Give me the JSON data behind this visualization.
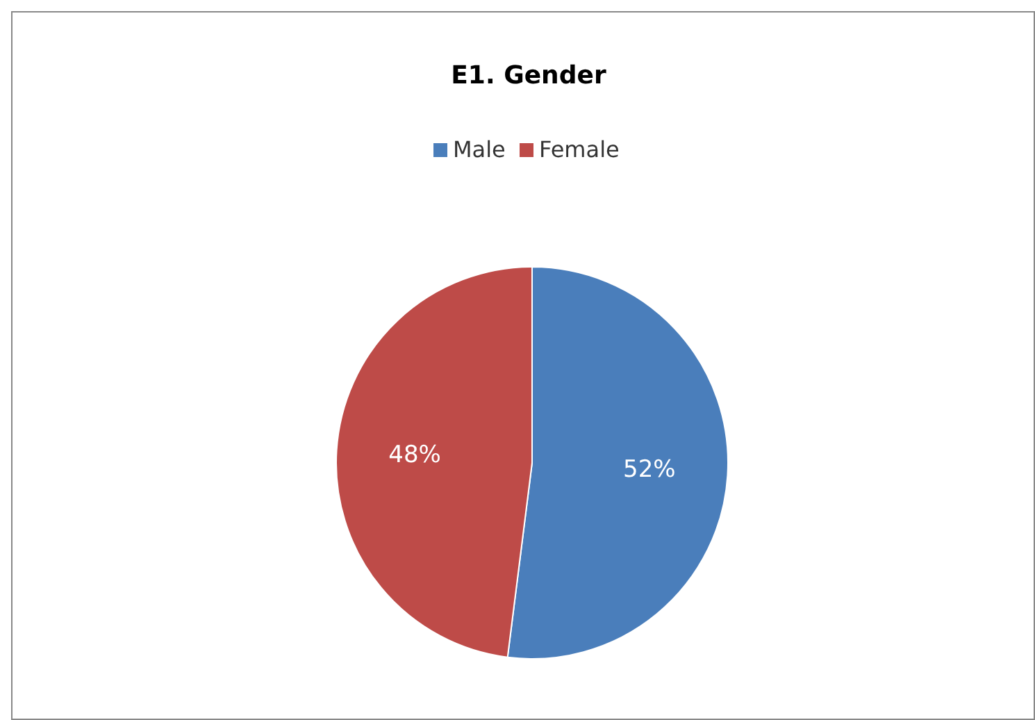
{
  "chart_data": {
    "type": "pie",
    "title": "E1. Gender",
    "categories": [
      "Male",
      "Female"
    ],
    "values": [
      52,
      48
    ],
    "colors": [
      "#4a7ebb",
      "#be4b48"
    ],
    "value_labels": [
      "52%",
      "48%"
    ],
    "legend": "top"
  }
}
